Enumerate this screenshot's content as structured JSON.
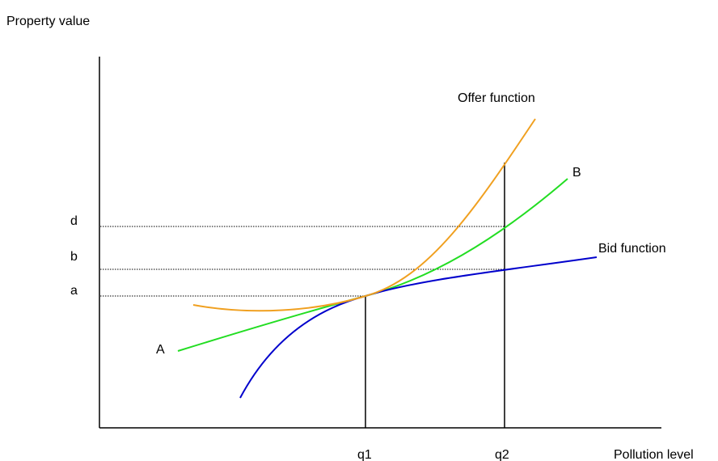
{
  "labels": {
    "y_axis": "Property value",
    "x_axis": "Pollution level",
    "q1": "q1",
    "q2": "q2",
    "d": "d",
    "b": "b",
    "a": "a",
    "curve_a": "A",
    "curve_b": "B",
    "offer": "Offer function",
    "bid": "Bid function"
  },
  "colors": {
    "offer_curve": "#f0a020",
    "green_curve": "#22dd22",
    "bid_curve": "#0000cc",
    "axes": "#000000"
  }
}
